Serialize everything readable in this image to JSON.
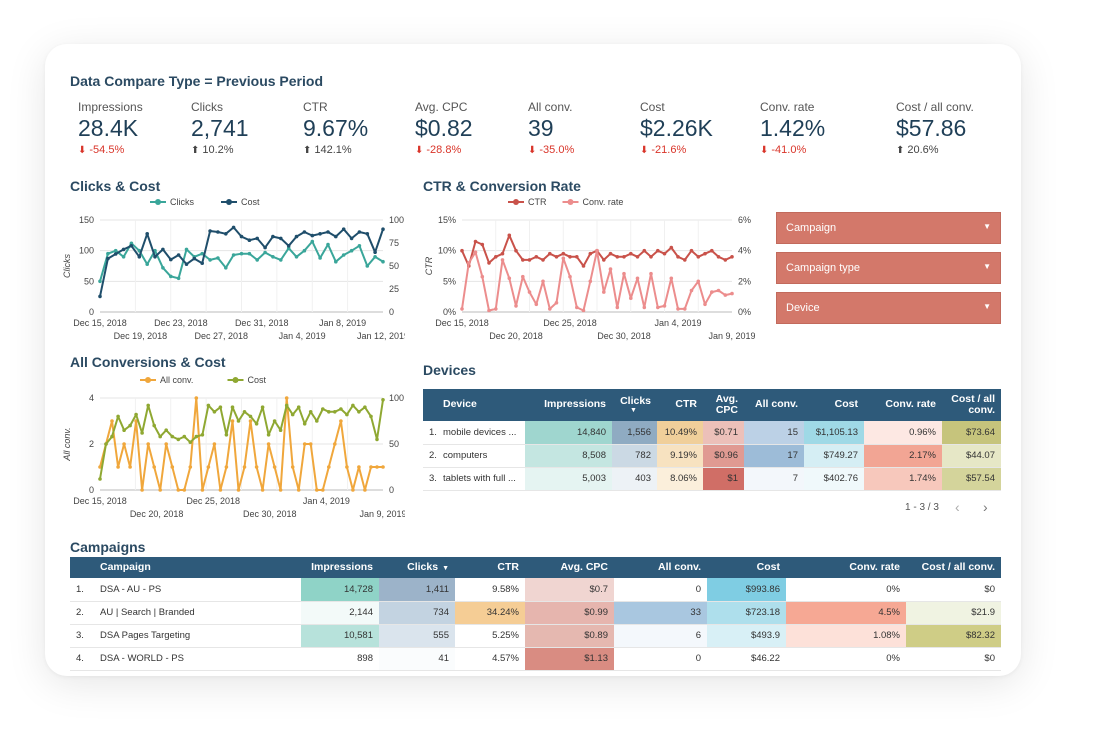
{
  "header": {
    "title": "Data Compare Type = Previous Period"
  },
  "kpis": [
    {
      "label": "Impressions",
      "value": "28.4K",
      "change": "-54.5%",
      "trend": "down"
    },
    {
      "label": "Clicks",
      "value": "2,741",
      "change": "10.2%",
      "trend": "up"
    },
    {
      "label": "CTR",
      "value": "9.67%",
      "change": "142.1%",
      "trend": "up"
    },
    {
      "label": "Avg. CPC",
      "value": "$0.82",
      "change": "-28.8%",
      "trend": "down"
    },
    {
      "label": "All conv.",
      "value": "39",
      "change": "-35.0%",
      "trend": "down"
    },
    {
      "label": "Cost",
      "value": "$2.26K",
      "change": "-21.6%",
      "trend": "down"
    },
    {
      "label": "Conv. rate",
      "value": "1.42%",
      "change": "-41.0%",
      "trend": "down"
    },
    {
      "label": "Cost / all conv.",
      "value": "$57.86",
      "change": "20.6%",
      "trend": "up"
    }
  ],
  "colors": {
    "header_bg": "#2e5a7a",
    "filter_bg": "#d3786a",
    "negative": "#d9352a",
    "title": "#2b4a62"
  },
  "filters": [
    {
      "label": "Campaign"
    },
    {
      "label": "Campaign type"
    },
    {
      "label": "Device"
    }
  ],
  "chart_data": [
    {
      "type": "line",
      "title": "Clicks & Cost",
      "ylabel": "Clicks",
      "y2label": "Cost",
      "ylim": [
        0,
        150
      ],
      "y2lim": [
        0,
        100
      ],
      "yticks": [
        "0",
        "50",
        "100",
        "150"
      ],
      "y2ticks": [
        "0",
        "25",
        "50",
        "75",
        "100"
      ],
      "xticks_row1": [
        "Dec 15, 2018",
        "Dec 23, 2018",
        "Dec 31, 2018",
        "Jan 8, 2019"
      ],
      "xticks_row2": [
        "Dec 19, 2018",
        "Dec 27, 2018",
        "Jan 4, 2019",
        "Jan 12, 2019"
      ],
      "series": [
        {
          "name": "Clicks",
          "color": "#3aa69a",
          "axis": "left",
          "values": [
            50,
            95,
            100,
            90,
            112,
            100,
            78,
            100,
            72,
            58,
            55,
            102,
            90,
            95,
            85,
            88,
            72,
            93,
            95,
            95,
            85,
            97,
            90,
            85,
            104,
            90,
            100,
            115,
            88,
            110,
            82,
            93,
            100,
            108,
            75,
            90,
            82
          ]
        },
        {
          "name": "Cost",
          "color": "#1f4e6b",
          "axis": "right",
          "values": [
            17,
            58,
            63,
            68,
            72,
            60,
            85,
            60,
            68,
            57,
            62,
            52,
            58,
            53,
            88,
            87,
            85,
            92,
            82,
            78,
            80,
            70,
            82,
            80,
            72,
            82,
            87,
            83,
            85,
            87,
            82,
            90,
            80,
            87,
            85,
            65,
            90
          ]
        }
      ]
    },
    {
      "type": "line",
      "title": "CTR & Conversion Rate",
      "ylabel": "CTR",
      "y2label": "Conv. rate",
      "ylim": [
        0,
        15
      ],
      "y2lim": [
        0,
        6
      ],
      "yticks": [
        "0%",
        "5%",
        "10%",
        "15%"
      ],
      "y2ticks": [
        "0%",
        "2%",
        "4%",
        "6%"
      ],
      "xticks_row1": [
        "Dec 15, 2018",
        "Dec 25, 2018",
        "Jan 4, 2019"
      ],
      "xticks_row2": [
        "Dec 20, 2018",
        "Dec 30, 2018",
        "Jan 9, 2019"
      ],
      "series": [
        {
          "name": "CTR",
          "color": "#c9524a",
          "axis": "left",
          "values": [
            10,
            7.5,
            11.5,
            11,
            8,
            9,
            9.5,
            12.5,
            10,
            8.5,
            8.5,
            9,
            8.5,
            9.5,
            9,
            9.5,
            9,
            9,
            7.5,
            9.5,
            10,
            8.5,
            9.5,
            9,
            9,
            9.5,
            9,
            10,
            9,
            10,
            9.5,
            10.5,
            9,
            8.5,
            10,
            9,
            9.5,
            10,
            9,
            8.5,
            9
          ]
        },
        {
          "name": "Conv. rate",
          "color": "#ec8d8d",
          "axis": "right",
          "values": [
            0.2,
            3.2,
            3.9,
            2.3,
            0.1,
            0.2,
            3.4,
            2.2,
            0.4,
            2.3,
            1.3,
            0.5,
            2.0,
            0.2,
            0.6,
            3.5,
            2.3,
            0.3,
            0.1,
            2.0,
            4.0,
            1.3,
            2.8,
            0.3,
            2.5,
            0.9,
            2.2,
            0.3,
            2.5,
            0.3,
            0.4,
            2.2,
            0.2,
            0.2,
            1.4,
            2.0,
            0.5,
            1.3,
            1.4,
            1.1,
            1.2
          ]
        }
      ]
    },
    {
      "type": "line",
      "title": "All Conversions & Cost",
      "ylabel": "All conv.",
      "y2label": "Cost",
      "ylim": [
        0,
        4
      ],
      "y2lim": [
        0,
        100
      ],
      "yticks": [
        "0",
        "2",
        "4"
      ],
      "y2ticks": [
        "0",
        "50",
        "100"
      ],
      "xticks_row1": [
        "Dec 15, 2018",
        "Dec 25, 2018",
        "Jan 4, 2019"
      ],
      "xticks_row2": [
        "Dec 20, 2018",
        "Dec 30, 2018",
        "Jan 9, 2019"
      ],
      "series": [
        {
          "name": "All conv.",
          "color": "#f0a73c",
          "axis": "left",
          "values": [
            1,
            2,
            3,
            1,
            2,
            1,
            3,
            0,
            2,
            1,
            0,
            2,
            1,
            0,
            0,
            1,
            4,
            0,
            1,
            2,
            0,
            1,
            3,
            0,
            1,
            3,
            1,
            0,
            2,
            1,
            0,
            4,
            1,
            0,
            2,
            2,
            0,
            0,
            1,
            2,
            3,
            1,
            0,
            1,
            0,
            1,
            1,
            1
          ]
        },
        {
          "name": "Cost",
          "color": "#8fa832",
          "axis": "right",
          "values": [
            12,
            50,
            58,
            80,
            65,
            70,
            82,
            62,
            92,
            70,
            58,
            65,
            58,
            55,
            58,
            52,
            58,
            60,
            92,
            85,
            90,
            60,
            90,
            75,
            85,
            80,
            72,
            90,
            60,
            75,
            65,
            92,
            82,
            90,
            72,
            85,
            75,
            88,
            85,
            85,
            88,
            82,
            92,
            85,
            90,
            80,
            55,
            98
          ]
        }
      ]
    }
  ],
  "devices": {
    "title": "Devices",
    "columns": [
      "Device",
      "Impressions",
      "Clicks",
      "CTR",
      "Avg. CPC",
      "All conv.",
      "Cost",
      "Conv. rate",
      "Cost / all conv."
    ],
    "sort_indicator": "▼",
    "rows": [
      {
        "idx": "1.",
        "cells": [
          "mobile devices ...",
          "14,840",
          "1,556",
          "10.49%",
          "$0.71",
          "15",
          "$1,105.13",
          "0.96%",
          "$73.64"
        ]
      },
      {
        "idx": "2.",
        "cells": [
          "computers",
          "8,508",
          "782",
          "9.19%",
          "$0.96",
          "17",
          "$749.27",
          "2.17%",
          "$44.07"
        ]
      },
      {
        "idx": "3.",
        "cells": [
          "tablets with full ...",
          "5,003",
          "403",
          "8.06%",
          "$1",
          "7",
          "$402.76",
          "1.74%",
          "$57.54"
        ]
      }
    ],
    "pager": "1 - 3 / 3"
  },
  "campaigns": {
    "title": "Campaigns",
    "columns": [
      "Campaign",
      "Impressions",
      "Clicks",
      "CTR",
      "Avg. CPC",
      "All conv.",
      "Cost",
      "Conv. rate",
      "Cost / all conv."
    ],
    "sort_indicator": "▼",
    "rows": [
      {
        "idx": "1.",
        "cells": [
          "DSA - AU - PS",
          "14,728",
          "1,411",
          "9.58%",
          "$0.7",
          "0",
          "$993.86",
          "0%",
          "$0"
        ]
      },
      {
        "idx": "2.",
        "cells": [
          "AU | Search | Branded",
          "2,144",
          "734",
          "34.24%",
          "$0.99",
          "33",
          "$723.18",
          "4.5%",
          "$21.9"
        ]
      },
      {
        "idx": "3.",
        "cells": [
          "DSA Pages Targeting",
          "10,581",
          "555",
          "5.25%",
          "$0.89",
          "6",
          "$493.9",
          "1.08%",
          "$82.32"
        ]
      },
      {
        "idx": "4.",
        "cells": [
          "DSA - WORLD - PS",
          "898",
          "41",
          "4.57%",
          "$1.13",
          "0",
          "$46.22",
          "0%",
          "$0"
        ]
      }
    ]
  }
}
